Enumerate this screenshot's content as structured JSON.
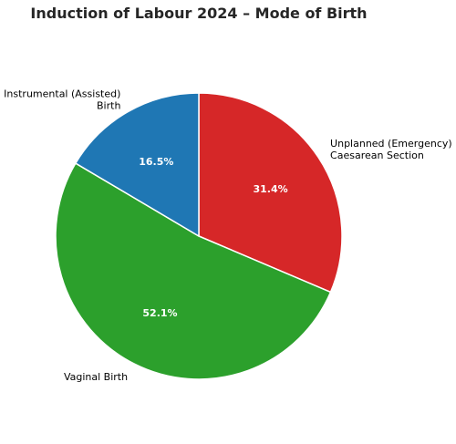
{
  "chart_data": {
    "type": "pie",
    "title": "Induction of Labour 2024 – Mode of Birth",
    "start_angle_deg": 90,
    "direction": "clockwise",
    "slices": [
      {
        "label": [
          "Unplanned (Emergency)",
          "Caesarean Section"
        ],
        "value": 31.4,
        "pct_text": "31.4%",
        "color": "#d62728"
      },
      {
        "label": [
          "Vaginal Birth"
        ],
        "value": 52.1,
        "pct_text": "52.1%",
        "color": "#2ca02c"
      },
      {
        "label": [
          "Instrumental (Assisted)",
          "Birth"
        ],
        "value": 16.5,
        "pct_text": "16.5%",
        "color": "#1f77b4"
      }
    ]
  }
}
